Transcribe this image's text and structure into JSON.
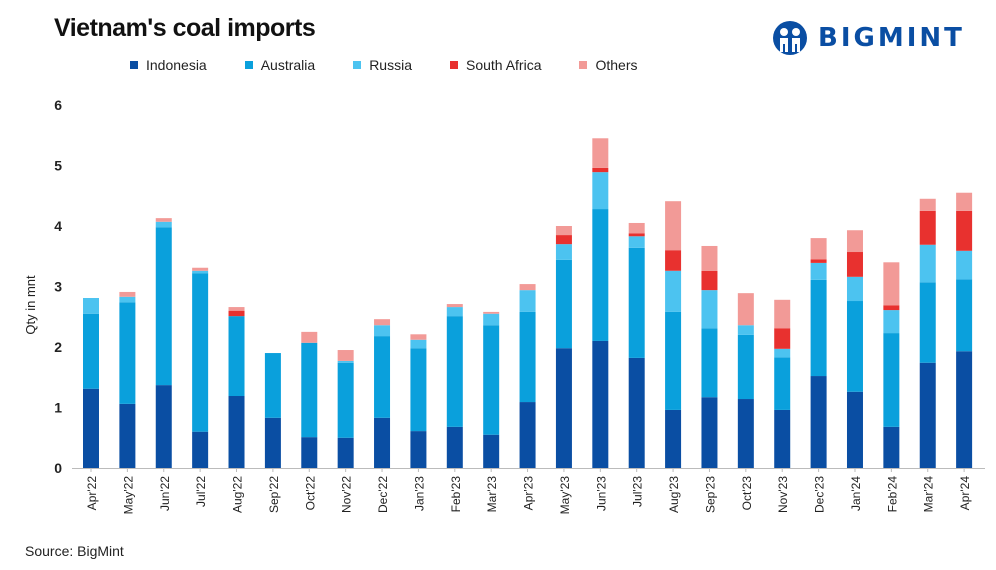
{
  "header": {
    "title": "Vietnam's coal imports",
    "logo_text": "BIGMINT"
  },
  "source": "Source: BigMint",
  "chart_data": {
    "type": "bar",
    "stacked": true,
    "title": "Vietnam's coal imports",
    "xlabel": "",
    "ylabel": "Qty in mnt",
    "ylim": [
      0,
      6
    ],
    "yticks": [
      "0",
      "1",
      "2",
      "3",
      "4",
      "5",
      "6"
    ],
    "legend_position": "top",
    "categories": [
      "Apr'22",
      "May'22",
      "Jun'22",
      "Jul'22",
      "Aug'22",
      "Sep'22",
      "Oct'22",
      "Nov'22",
      "Dec'22",
      "Jan'23",
      "Feb'23",
      "Mar'23",
      "Apr'23",
      "May'23",
      "Jun'23",
      "Jul'23",
      "Aug'23",
      "Sep'23",
      "Oct'23",
      "Nov'23",
      "Dec'23",
      "Jan'24",
      "Feb'24",
      "Mar'24",
      "Apr'24"
    ],
    "series": [
      {
        "name": "Indonesia",
        "color": "#0a4ea3",
        "values": [
          1.31,
          1.06,
          1.37,
          0.6,
          1.19,
          0.83,
          0.51,
          0.5,
          0.83,
          0.61,
          0.68,
          0.55,
          1.09,
          1.98,
          2.1,
          1.82,
          0.96,
          1.17,
          1.14,
          0.96,
          1.52,
          1.26,
          0.68,
          1.74,
          1.93
        ]
      },
      {
        "name": "Australia",
        "color": "#0aa0dc",
        "values": [
          1.24,
          1.68,
          2.61,
          2.62,
          1.32,
          1.07,
          1.56,
          1.24,
          1.35,
          1.37,
          1.83,
          1.81,
          1.49,
          1.46,
          2.18,
          1.82,
          1.62,
          1.14,
          1.06,
          0.87,
          1.59,
          1.5,
          1.55,
          1.33,
          1.19
        ]
      },
      {
        "name": "Russia",
        "color": "#4cc3f0",
        "values": [
          0.26,
          0.09,
          0.09,
          0.04,
          0,
          0,
          0,
          0.03,
          0.18,
          0.14,
          0.15,
          0.19,
          0.36,
          0.26,
          0.61,
          0.19,
          0.68,
          0.63,
          0.16,
          0.14,
          0.28,
          0.4,
          0.38,
          0.62,
          0.47
        ]
      },
      {
        "name": "South Africa",
        "color": "#e8312f",
        "values": [
          0,
          0,
          0,
          0,
          0.09,
          0,
          0,
          0,
          0,
          0,
          0,
          0,
          0,
          0.15,
          0.07,
          0.05,
          0.34,
          0.32,
          0,
          0.34,
          0.06,
          0.41,
          0.08,
          0.56,
          0.66
        ]
      },
      {
        "name": "Others",
        "color": "#f29a97",
        "values": [
          0,
          0.08,
          0.06,
          0.05,
          0.06,
          0,
          0.18,
          0.18,
          0.1,
          0.09,
          0.05,
          0.03,
          0.1,
          0.15,
          0.49,
          0.17,
          0.81,
          0.41,
          0.53,
          0.47,
          0.35,
          0.36,
          0.71,
          0.2,
          0.3
        ]
      }
    ]
  }
}
